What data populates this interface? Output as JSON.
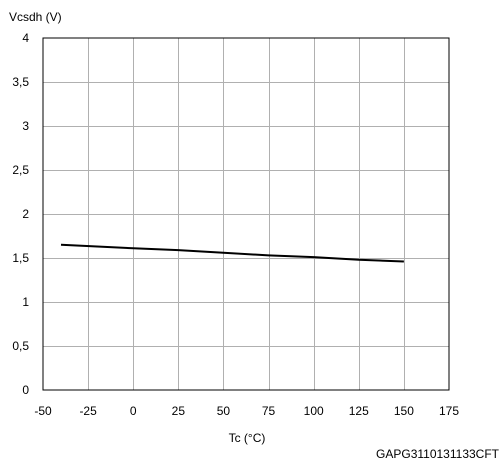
{
  "chart_data": {
    "type": "line",
    "title": "",
    "xlabel": "Tc (°C)",
    "ylabel": "Vcsdh (V)",
    "xlim": [
      -50,
      175
    ],
    "ylim": [
      0,
      4
    ],
    "x_ticks": [
      -50,
      -25,
      0,
      25,
      50,
      75,
      100,
      125,
      150,
      175
    ],
    "x_tick_labels": [
      "-50",
      "-25",
      "0",
      "25",
      "50",
      "75",
      "100",
      "125",
      "150",
      "175"
    ],
    "y_ticks": [
      0,
      0.5,
      1,
      1.5,
      2,
      2.5,
      3,
      3.5,
      4
    ],
    "y_tick_labels": [
      "0",
      "0,5",
      "1",
      "1,5",
      "2",
      "2,5",
      "3",
      "3,5",
      "4"
    ],
    "grid": true,
    "series": [
      {
        "x": [
          -40,
          0,
          25,
          50,
          75,
          100,
          125,
          150
        ],
        "y": [
          1.65,
          1.61,
          1.59,
          1.56,
          1.53,
          1.51,
          1.48,
          1.46
        ],
        "color": "#000000"
      }
    ],
    "footnote": "GAPG3110131133CFT"
  }
}
